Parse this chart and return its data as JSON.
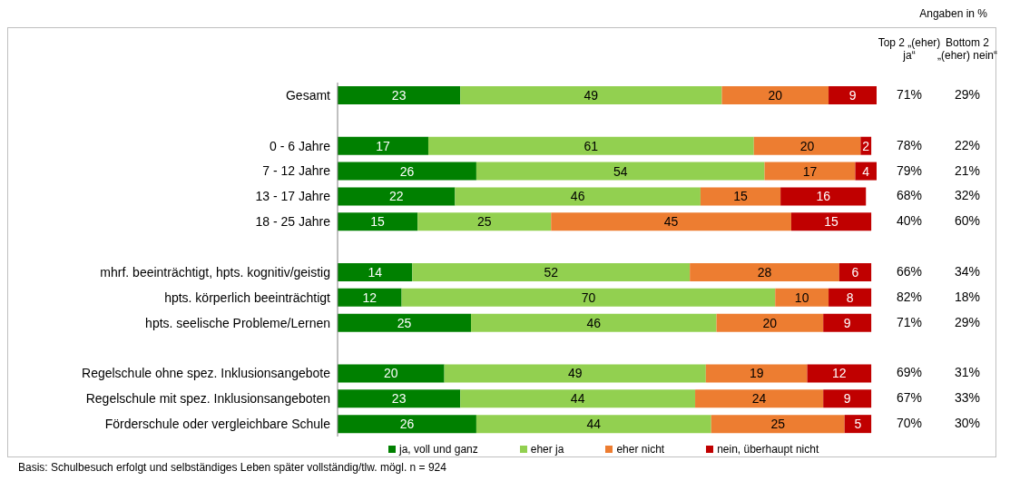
{
  "chart_data": {
    "type": "bar",
    "orientation": "horizontal",
    "stacked": true,
    "data_labels": true,
    "legend": "bottom",
    "grid": false,
    "categories": [
      "Gesamt",
      null,
      "0 - 6 Jahre",
      "7 - 12 Jahre",
      "13 - 17 Jahre",
      "18 - 25 Jahre",
      null,
      "mhrf. beeinträchtigt, hpts. kognitiv/geistig",
      "hpts. körperlich beeinträchtigt",
      "hpts. seelische Probleme/Lernen",
      null,
      "Regelschule ohne spez. Inklusionsangebote",
      "Regelschule mit spez. Inklusionsangeboten",
      "Förderschule oder vergleichbare Schule"
    ],
    "series": [
      {
        "name": "ja, voll und ganz",
        "color": "#008000",
        "values": [
          23,
          null,
          17,
          26,
          22,
          15,
          null,
          14,
          12,
          25,
          null,
          20,
          23,
          26
        ]
      },
      {
        "name": "eher ja",
        "color": "#92d050",
        "values": [
          49,
          null,
          61,
          54,
          46,
          25,
          null,
          52,
          70,
          46,
          null,
          49,
          44,
          44
        ]
      },
      {
        "name": "eher nicht",
        "color": "#ed7d31",
        "values": [
          20,
          null,
          20,
          17,
          15,
          45,
          null,
          28,
          10,
          20,
          null,
          19,
          24,
          25
        ]
      },
      {
        "name": "nein, überhaupt nicht",
        "color": "#c00000",
        "values": [
          9,
          null,
          2,
          4,
          16,
          15,
          null,
          6,
          8,
          9,
          null,
          12,
          9,
          5
        ]
      }
    ],
    "annotations": [
      "Angaben in %",
      "Top 2 „(eher) ja“",
      "Bottom 2 „(eher) nein“",
      "71%",
      "29%",
      "78%",
      "22%",
      "79%",
      "21%",
      "68%",
      "32%",
      "40%",
      "60%",
      "66%",
      "34%",
      "82%",
      "18%",
      "71%",
      "29%",
      "69%",
      "31%",
      "67%",
      "33%",
      "70%",
      "30%",
      "Basis: Schulbesuch erfolgt und selbständiges Leben später vollständig/tlw. mögl. n = 924"
    ]
  }
}
